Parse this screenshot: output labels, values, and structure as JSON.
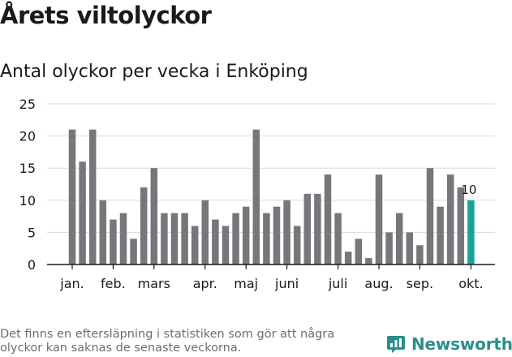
{
  "title": "Årets viltolyckor",
  "subtitle": "Antal olyckor per vecka i Enköping",
  "footnote": "Det finns en eftersläpning i statistiken som gör att några olyckor kan saknas de senaste veckorna.",
  "brand": {
    "name": "Newsworthy",
    "icon": "newsworthy-logo-icon"
  },
  "colors": {
    "bar": "#77767b",
    "highlight": "#18a39a",
    "grid": "#d9d9d9",
    "axis": "#1a1a1a"
  },
  "chart_data": {
    "type": "bar",
    "title": "Antal olyckor per vecka i Enköping",
    "xlabel": "",
    "ylabel": "",
    "ylim": [
      0,
      25
    ],
    "yticks": [
      0,
      5,
      10,
      15,
      20,
      25
    ],
    "grid": true,
    "legend": "none",
    "month_labels": [
      {
        "label": "jan.",
        "week": 1
      },
      {
        "label": "feb.",
        "week": 5
      },
      {
        "label": "mars",
        "week": 9
      },
      {
        "label": "apr.",
        "week": 14
      },
      {
        "label": "maj",
        "week": 18
      },
      {
        "label": "juni",
        "week": 22
      },
      {
        "label": "juli",
        "week": 27
      },
      {
        "label": "aug.",
        "week": 31
      },
      {
        "label": "sep.",
        "week": 35
      },
      {
        "label": "okt.",
        "week": 40
      }
    ],
    "values": [
      21,
      16,
      21,
      10,
      7,
      8,
      4,
      12,
      15,
      8,
      8,
      8,
      6,
      10,
      7,
      6,
      8,
      9,
      21,
      8,
      9,
      10,
      6,
      11,
      11,
      14,
      8,
      2,
      4,
      1,
      14,
      5,
      8,
      5,
      3,
      15,
      9,
      14,
      12,
      10
    ],
    "highlight_index": 39,
    "data_labels": [
      {
        "index": 39,
        "text": "10"
      }
    ]
  }
}
